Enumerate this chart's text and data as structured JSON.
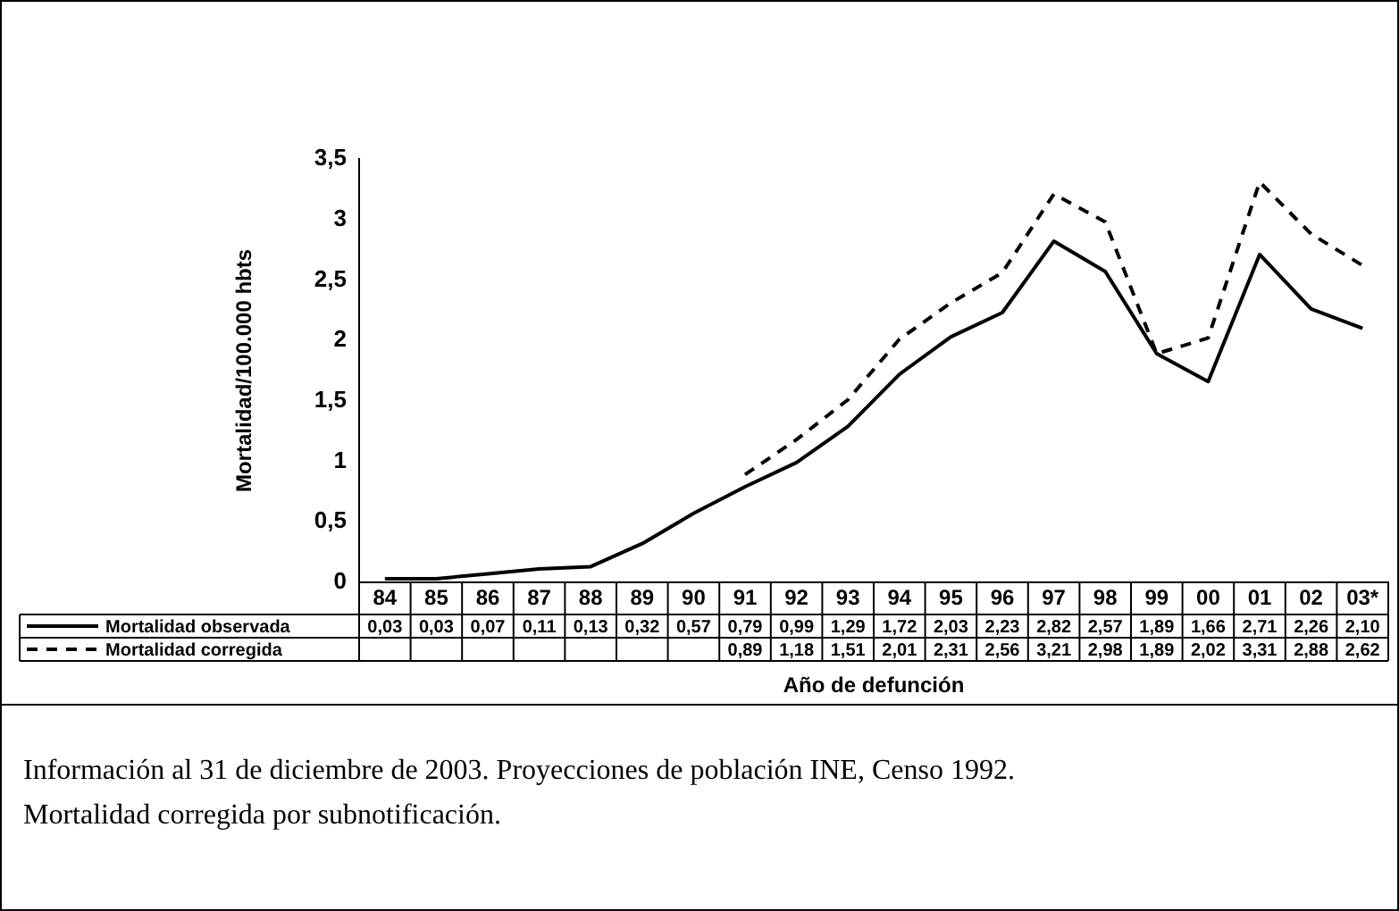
{
  "chart_data": {
    "type": "line",
    "ylabel": "Mortalidad/100.000 hbts",
    "xlabel": "Año de defunción",
    "categories": [
      "84",
      "85",
      "86",
      "87",
      "88",
      "89",
      "90",
      "91",
      "92",
      "93",
      "94",
      "95",
      "96",
      "97",
      "98",
      "99",
      "00",
      "01",
      "02",
      "03*"
    ],
    "ylim": [
      0,
      3.5
    ],
    "yticks": [
      {
        "value": 0,
        "label": "0"
      },
      {
        "value": 0.5,
        "label": "0,5"
      },
      {
        "value": 1,
        "label": "1"
      },
      {
        "value": 1.5,
        "label": "1,5"
      },
      {
        "value": 2,
        "label": "2"
      },
      {
        "value": 2.5,
        "label": "2,5"
      },
      {
        "value": 3,
        "label": "3"
      },
      {
        "value": 3.5,
        "label": "3,5"
      }
    ],
    "grid": false,
    "legend": "bottom",
    "marker": "none",
    "series": [
      {
        "name": "Mortalidad observada",
        "color": "#000000",
        "line_style": "solid",
        "values": [
          0.03,
          0.03,
          0.07,
          0.11,
          0.13,
          0.32,
          0.57,
          0.79,
          0.99,
          1.29,
          1.72,
          2.03,
          2.23,
          2.82,
          2.57,
          1.89,
          1.66,
          2.71,
          2.26,
          2.1
        ],
        "value_labels": [
          "0,03",
          "0,03",
          "0,07",
          "0,11",
          "0,13",
          "0,32",
          "0,57",
          "0,79",
          "0,99",
          "1,29",
          "1,72",
          "2,03",
          "2,23",
          "2,82",
          "2,57",
          "1,89",
          "1,66",
          "2,71",
          "2,26",
          "2,10"
        ]
      },
      {
        "name": "Mortalidad corregida",
        "color": "#000000",
        "line_style": "dashed",
        "values": [
          null,
          null,
          null,
          null,
          null,
          null,
          null,
          0.89,
          1.18,
          1.51,
          2.01,
          2.31,
          2.56,
          3.21,
          2.98,
          1.89,
          2.02,
          3.31,
          2.88,
          2.62
        ],
        "value_labels": [
          null,
          null,
          null,
          null,
          null,
          null,
          null,
          "0,89",
          "1,18",
          "1,51",
          "2,01",
          "2,31",
          "2,56",
          "3,21",
          "2,98",
          "1,89",
          "2,02",
          "3,31",
          "2,88",
          "2,62"
        ]
      }
    ],
    "annotations": [
      "Información al 31 de diciembre de 2003. Proyecciones de población INE, Censo 1992.",
      "Mortalidad corregida por subnotificación."
    ]
  }
}
